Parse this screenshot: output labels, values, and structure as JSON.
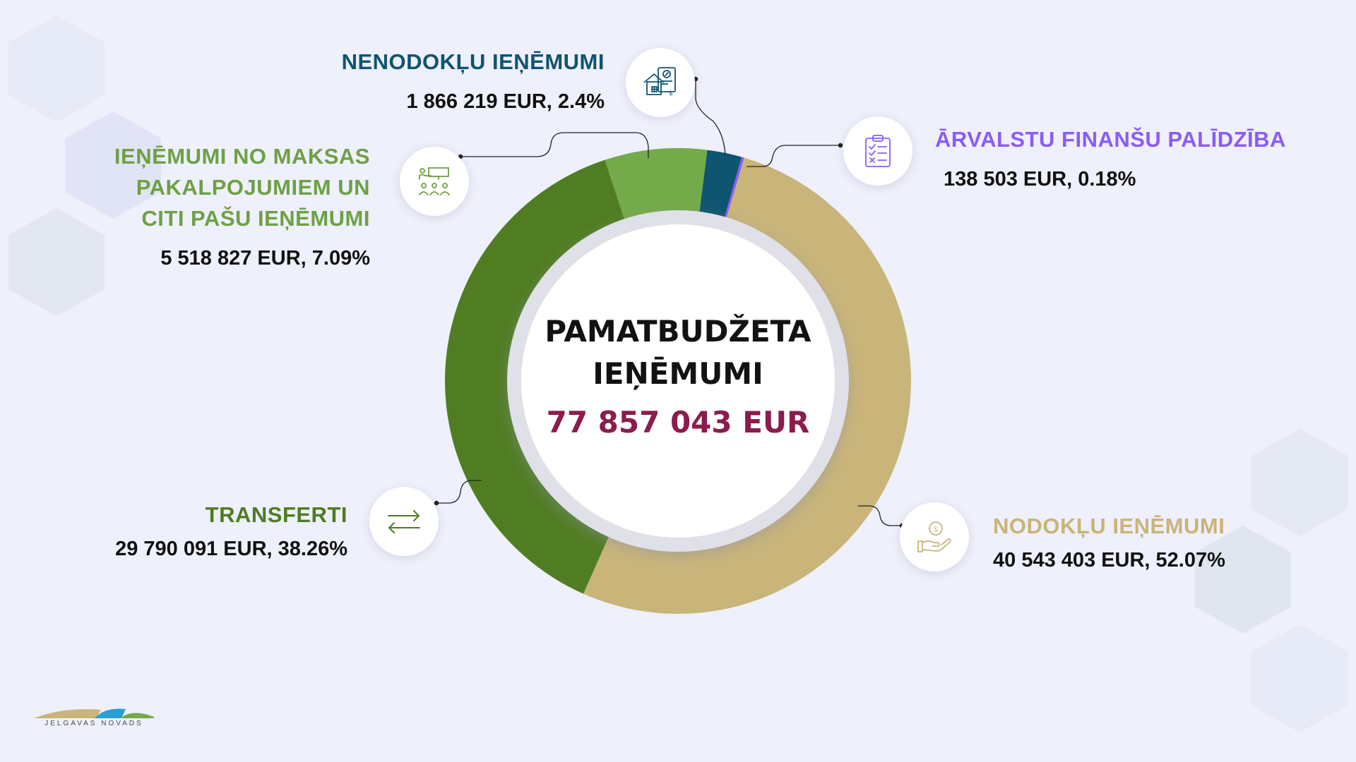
{
  "chart_data": {
    "type": "pie",
    "center_title": [
      "PAMATBUDŽETA",
      "IEŅĒMUMI"
    ],
    "total": "77 857 043 EUR",
    "segments": [
      {
        "id": "nodoklu",
        "name": "NODOKĻU IEŅĒMUMI",
        "value": 40543403,
        "percent": 52.07,
        "value_label": "40 543 403 EUR, 52.07%",
        "color": "#c9b479"
      },
      {
        "id": "transferti",
        "name": "TRANSFERTI",
        "value": 29790091,
        "percent": 38.26,
        "value_label": "29 790 091 EUR, 38.26%",
        "color": "#507d22"
      },
      {
        "id": "maksas",
        "name": "IEŅĒMUMI NO MAKSAS PAKALPOJUMIEM UN CITI PAŠU IEŅĒMUMI",
        "title_lines": [
          "IEŅĒMUMI NO MAKSAS",
          "PAKALPOJUMIEM UN",
          "CITI PAŠU IEŅĒMUMI"
        ],
        "value": 5518827,
        "percent": 7.09,
        "value_label": "5 518 827 EUR, 7.09%",
        "color": "#74aa4a"
      },
      {
        "id": "nenodoklu",
        "name": "NENODOKĻU IEŅĒMUMI",
        "value": 1866219,
        "percent": 2.4,
        "value_label": "1 866 219 EUR, 2.4%",
        "color": "#0f5470"
      },
      {
        "id": "arvalstu",
        "name": "ĀRVALSTU FINANŠU PALĪDZĪBA",
        "value": 138503,
        "percent": 0.18,
        "value_label": "138 503 EUR, 0.18%",
        "color": "#8b5cf6"
      }
    ]
  },
  "colors": {
    "total": "#8a1d4d",
    "background": "#eef0fb",
    "maksas_title": "#6ea045",
    "transferti_title": "#4f7c23",
    "nenodoklu_title": "#0f5470",
    "arvalstu_title": "#8b5cf6",
    "nodoklu_title": "#c9b479"
  },
  "icons": {
    "nenodoklu": "property-document-icon",
    "maksas": "presentation-audience-icon",
    "arvalstu": "clipboard-checklist-icon",
    "transferti": "transfer-arrows-icon",
    "nodoklu": "hand-coin-icon"
  },
  "logo": {
    "text": "JELGAVAS NOVADS"
  }
}
